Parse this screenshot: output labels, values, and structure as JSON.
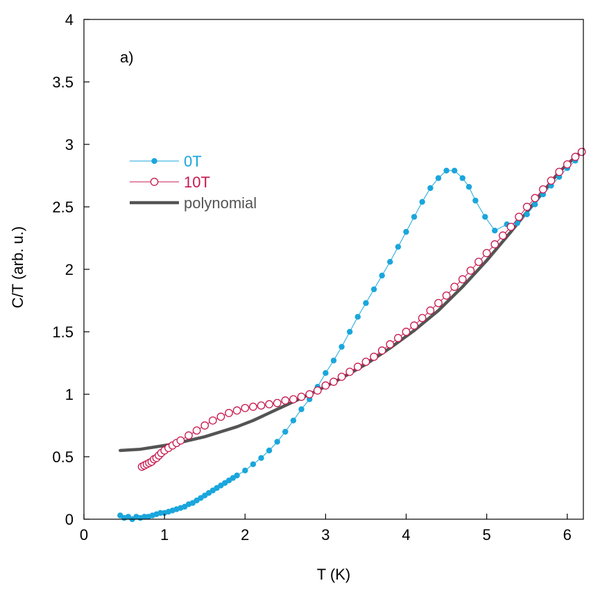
{
  "chart_data": {
    "type": "scatter",
    "panel_label": "a)",
    "xlabel": "T (K)",
    "ylabel": "C/T (arb. u.)",
    "xlim": [
      0,
      6.2
    ],
    "ylim": [
      0,
      4
    ],
    "xticks": [
      0,
      1,
      2,
      3,
      4,
      5,
      6
    ],
    "yticks": [
      0,
      0.5,
      1,
      1.5,
      2,
      2.5,
      3,
      3.5,
      4
    ],
    "xtick_labels": [
      "0",
      "1",
      "2",
      "3",
      "4",
      "5",
      "6"
    ],
    "ytick_labels": [
      "0",
      "0.5",
      "1",
      "1.5",
      "2",
      "2.5",
      "3",
      "3.5",
      "4"
    ],
    "legend_position": "upper-left",
    "series": [
      {
        "name": "0T",
        "color": "#1aa6dc",
        "marker": "filled-circle",
        "line": true,
        "x": [
          0.45,
          0.5,
          0.55,
          0.6,
          0.65,
          0.7,
          0.75,
          0.8,
          0.85,
          0.9,
          0.95,
          1.0,
          1.05,
          1.1,
          1.15,
          1.2,
          1.25,
          1.3,
          1.35,
          1.4,
          1.45,
          1.5,
          1.55,
          1.6,
          1.65,
          1.7,
          1.75,
          1.8,
          1.85,
          1.9,
          2.0,
          2.1,
          2.2,
          2.3,
          2.4,
          2.5,
          2.6,
          2.7,
          2.8,
          2.9,
          3.0,
          3.1,
          3.2,
          3.3,
          3.4,
          3.5,
          3.6,
          3.7,
          3.8,
          3.9,
          4.0,
          4.1,
          4.2,
          4.3,
          4.4,
          4.5,
          4.6,
          4.7,
          4.78,
          4.86,
          4.98,
          5.1,
          5.25,
          5.38,
          5.5,
          5.6,
          5.7,
          5.8,
          5.9,
          6.0,
          6.1,
          6.18
        ],
        "y": [
          0.03,
          0.01,
          0.02,
          0.0,
          0.02,
          0.01,
          0.02,
          0.02,
          0.03,
          0.04,
          0.05,
          0.05,
          0.06,
          0.07,
          0.08,
          0.09,
          0.1,
          0.12,
          0.13,
          0.15,
          0.17,
          0.19,
          0.21,
          0.23,
          0.25,
          0.27,
          0.29,
          0.31,
          0.33,
          0.35,
          0.39,
          0.44,
          0.49,
          0.55,
          0.62,
          0.7,
          0.79,
          0.88,
          0.96,
          1.06,
          1.17,
          1.27,
          1.38,
          1.5,
          1.62,
          1.73,
          1.84,
          1.95,
          2.06,
          2.18,
          2.3,
          2.42,
          2.54,
          2.65,
          2.73,
          2.79,
          2.79,
          2.73,
          2.66,
          2.55,
          2.42,
          2.31,
          2.36,
          2.37,
          2.44,
          2.52,
          2.6,
          2.67,
          2.74,
          2.81,
          2.87,
          2.93
        ]
      },
      {
        "name": "10T",
        "color": "#c8184f",
        "marker": "open-circle",
        "line": true,
        "x": [
          0.72,
          0.75,
          0.78,
          0.81,
          0.84,
          0.87,
          0.9,
          0.93,
          0.96,
          1.0,
          1.05,
          1.1,
          1.15,
          1.2,
          1.3,
          1.4,
          1.5,
          1.6,
          1.7,
          1.8,
          1.9,
          2.0,
          2.1,
          2.2,
          2.3,
          2.4,
          2.5,
          2.6,
          2.7,
          2.8,
          2.9,
          3.0,
          3.1,
          3.2,
          3.3,
          3.4,
          3.5,
          3.6,
          3.7,
          3.8,
          3.9,
          4.0,
          4.1,
          4.2,
          4.3,
          4.4,
          4.5,
          4.6,
          4.7,
          4.8,
          4.9,
          5.0,
          5.1,
          5.2,
          5.3,
          5.4,
          5.5,
          5.6,
          5.7,
          5.8,
          5.9,
          6.0,
          6.1,
          6.18
        ],
        "y": [
          0.42,
          0.43,
          0.44,
          0.45,
          0.46,
          0.48,
          0.49,
          0.51,
          0.53,
          0.55,
          0.57,
          0.59,
          0.61,
          0.63,
          0.67,
          0.71,
          0.75,
          0.79,
          0.82,
          0.85,
          0.87,
          0.89,
          0.9,
          0.91,
          0.92,
          0.93,
          0.95,
          0.96,
          0.98,
          1.0,
          1.03,
          1.07,
          1.1,
          1.14,
          1.18,
          1.22,
          1.26,
          1.3,
          1.35,
          1.4,
          1.45,
          1.5,
          1.55,
          1.61,
          1.67,
          1.73,
          1.79,
          1.86,
          1.92,
          1.99,
          2.06,
          2.13,
          2.2,
          2.27,
          2.34,
          2.42,
          2.5,
          2.57,
          2.64,
          2.71,
          2.78,
          2.84,
          2.9,
          2.94
        ]
      },
      {
        "name": "polynomial",
        "color": "#545454",
        "marker": "none",
        "line": true,
        "x": [
          0.45,
          0.7,
          0.9,
          1.1,
          1.3,
          1.5,
          1.7,
          1.9,
          2.1,
          2.3,
          2.5,
          2.7,
          2.9,
          3.2,
          3.5,
          3.8,
          4.1,
          4.4,
          4.7,
          5.0,
          5.3,
          5.6,
          5.9,
          6.2
        ],
        "y": [
          0.55,
          0.56,
          0.58,
          0.6,
          0.63,
          0.66,
          0.7,
          0.74,
          0.79,
          0.85,
          0.91,
          0.97,
          1.03,
          1.13,
          1.24,
          1.37,
          1.51,
          1.67,
          1.86,
          2.07,
          2.3,
          2.54,
          2.78,
          2.96
        ]
      }
    ]
  }
}
